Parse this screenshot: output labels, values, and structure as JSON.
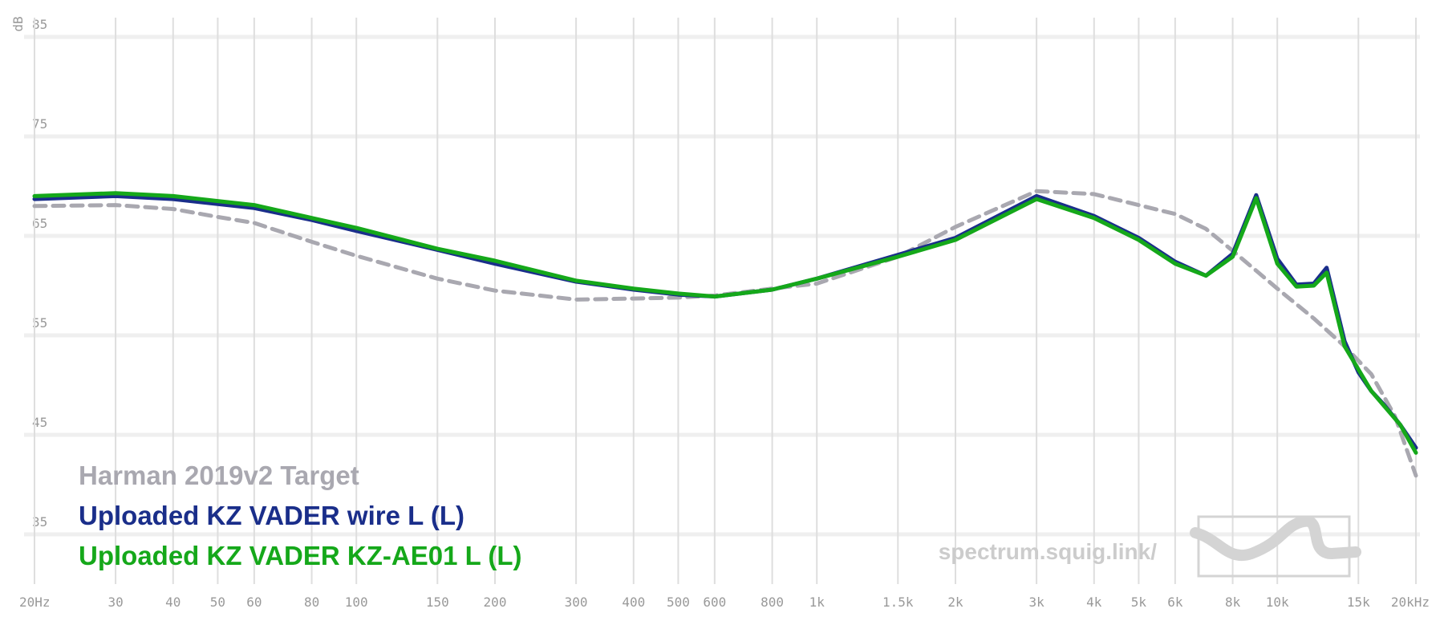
{
  "chart_data": {
    "type": "line",
    "y_label": "dB",
    "watermark": "spectrum.squig.link/",
    "xscale": "log",
    "xlim": [
      20,
      20000
    ],
    "ylim": [
      30,
      85
    ],
    "grid": true,
    "xticks": [
      {
        "value": 20,
        "label": "20Hz"
      },
      30,
      40,
      50,
      60,
      80,
      100,
      150,
      200,
      300,
      400,
      500,
      600,
      800,
      {
        "value": 1000,
        "label": "1k"
      },
      {
        "value": 1500,
        "label": "1.5k"
      },
      {
        "value": 2000,
        "label": "2k"
      },
      {
        "value": 3000,
        "label": "3k"
      },
      {
        "value": 4000,
        "label": "4k"
      },
      {
        "value": 5000,
        "label": "5k"
      },
      {
        "value": 6000,
        "label": "6k"
      },
      {
        "value": 8000,
        "label": "8k"
      },
      {
        "value": 10000,
        "label": "10k"
      },
      {
        "value": 15000,
        "label": "15k"
      },
      {
        "value": 20000,
        "label": "20kHz"
      }
    ],
    "yticks": [
      35,
      45,
      55,
      65,
      75,
      85
    ],
    "series": [
      {
        "name": "Harman 2019v2 Target",
        "color": "#a9a8b0",
        "line_style": "dashed",
        "x": [
          20,
          30,
          40,
          50,
          60,
          80,
          100,
          150,
          200,
          300,
          400,
          500,
          600,
          800,
          1000,
          1500,
          2000,
          3000,
          4000,
          5000,
          6000,
          7000,
          8000,
          9000,
          10000,
          12000,
          14000,
          16000,
          18000,
          20000
        ],
        "values": [
          68.0,
          68.1,
          67.7,
          66.9,
          66.3,
          64.4,
          63.0,
          60.7,
          59.5,
          58.6,
          58.7,
          58.8,
          59.0,
          59.7,
          60.2,
          62.9,
          65.9,
          69.5,
          69.2,
          68.1,
          67.2,
          65.7,
          63.5,
          61.5,
          59.7,
          56.7,
          53.9,
          51.1,
          46.9,
          40.9
        ]
      },
      {
        "name": "Uploaded KZ VADER wire L (L)",
        "color": "#1a2e8a",
        "line_style": "solid",
        "x": [
          20,
          30,
          40,
          50,
          60,
          80,
          100,
          150,
          200,
          300,
          400,
          500,
          600,
          800,
          1000,
          1500,
          2000,
          3000,
          4000,
          5000,
          6000,
          7000,
          8000,
          9000,
          10000,
          11000,
          12000,
          12800,
          14000,
          15000,
          16000,
          17000,
          18500,
          20000
        ],
        "values": [
          68.7,
          69.0,
          68.7,
          68.2,
          67.8,
          66.6,
          65.5,
          63.6,
          62.2,
          60.4,
          59.6,
          59.1,
          58.9,
          59.6,
          60.7,
          63.1,
          64.8,
          69.0,
          67.0,
          64.8,
          62.4,
          61.0,
          63.2,
          69.1,
          62.7,
          60.1,
          60.2,
          61.8,
          54.4,
          51.3,
          49.4,
          48.1,
          46.0,
          43.7
        ]
      },
      {
        "name": "Uploaded KZ VADER KZ-AE01 L (L)",
        "color": "#15a81a",
        "line_style": "solid",
        "x": [
          20,
          30,
          40,
          50,
          60,
          80,
          100,
          150,
          200,
          300,
          400,
          500,
          600,
          800,
          1000,
          1500,
          2000,
          3000,
          4000,
          5000,
          6000,
          7000,
          8000,
          9000,
          10000,
          11000,
          12000,
          12800,
          14000,
          16000,
          18500,
          20000
        ],
        "values": [
          69.0,
          69.3,
          69.0,
          68.5,
          68.1,
          66.8,
          65.8,
          63.7,
          62.5,
          60.5,
          59.7,
          59.2,
          58.9,
          59.6,
          60.7,
          62.9,
          64.6,
          68.7,
          66.8,
          64.6,
          62.2,
          61.0,
          62.9,
          68.8,
          62.2,
          59.9,
          60.0,
          61.3,
          53.9,
          49.4,
          46.0,
          43.2
        ]
      }
    ]
  }
}
